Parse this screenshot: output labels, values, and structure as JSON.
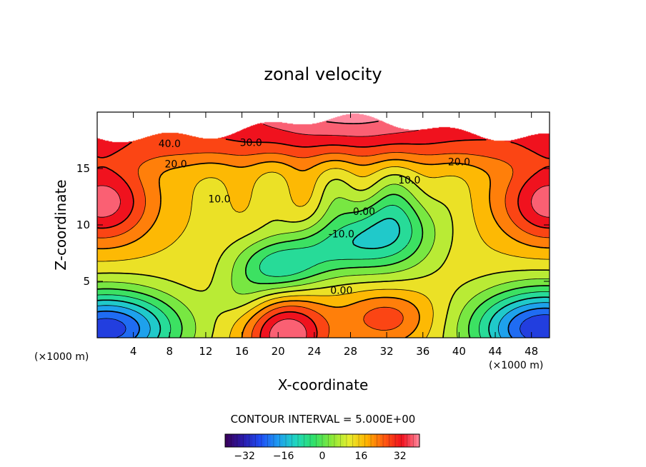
{
  "chart_data": {
    "type": "contour",
    "title": "zonal velocity",
    "xlabel": "X-coordinate",
    "ylabel": "Z-coordinate",
    "x_unit_left": "(×1000 m)",
    "x_unit_right": "(×1000 m)",
    "xlim": [
      0,
      50
    ],
    "ylim": [
      0,
      20
    ],
    "x_ticks": [
      4,
      8,
      12,
      16,
      20,
      24,
      28,
      32,
      36,
      40,
      44,
      48
    ],
    "y_ticks": [
      5,
      10,
      15
    ],
    "contour_interval_text": "CONTOUR INTERVAL = 5.000E+00",
    "contour_interval": 5.0,
    "contour_labels": [
      {
        "text": "40.0",
        "x": 8.0,
        "z": 17.2
      },
      {
        "text": "30.0",
        "x": 17.0,
        "z": 17.3
      },
      {
        "text": "20.0",
        "x": 8.7,
        "z": 15.4
      },
      {
        "text": "20.0",
        "x": 40.0,
        "z": 15.6
      },
      {
        "text": "10.0",
        "x": 13.5,
        "z": 12.3
      },
      {
        "text": "10.0",
        "x": 34.5,
        "z": 14.0
      },
      {
        "text": "0.00",
        "x": 29.5,
        "z": 11.2
      },
      {
        "text": "-10.0",
        "x": 27.0,
        "z": 9.2
      },
      {
        "text": "0.00",
        "x": 27.0,
        "z": 4.2
      }
    ],
    "features": [
      {
        "name": "westerly jet left",
        "x": 1.0,
        "z": 12.0,
        "value": 35
      },
      {
        "name": "westerly jet right",
        "x": 49.5,
        "z": 12.0,
        "value": 35
      },
      {
        "name": "upper jet",
        "x": 27.0,
        "z": 19.5,
        "value": 40
      },
      {
        "name": "easterly core",
        "x": 33.0,
        "z": 10.0,
        "value": -14
      },
      {
        "name": "easterly lobe",
        "x": 20.0,
        "z": 6.0,
        "value": -13
      },
      {
        "name": "surface easterly left",
        "x": 1.0,
        "z": 1.0,
        "value": -30
      },
      {
        "name": "surface easterly right",
        "x": 49.5,
        "z": 1.0,
        "value": -32
      },
      {
        "name": "surface westerly",
        "x": 21.0,
        "z": 0.5,
        "value": 35
      },
      {
        "name": "surface westerly 2",
        "x": 32.0,
        "z": 2.0,
        "value": 22
      }
    ],
    "colorbar": {
      "min": -40,
      "max": 40,
      "ticks": [
        -32,
        -16,
        0,
        16,
        32
      ],
      "tick_labels": [
        "−32",
        "−16",
        "0",
        "16",
        "32"
      ]
    },
    "colors": {
      "stops": [
        "#3a0058",
        "#2a1aa8",
        "#1f4cf4",
        "#1e9cf0",
        "#20d6c0",
        "#2ee06a",
        "#86e83a",
        "#e6ee30",
        "#ffb400",
        "#ff5a10",
        "#f0101e",
        "#ff8aa0"
      ]
    }
  }
}
